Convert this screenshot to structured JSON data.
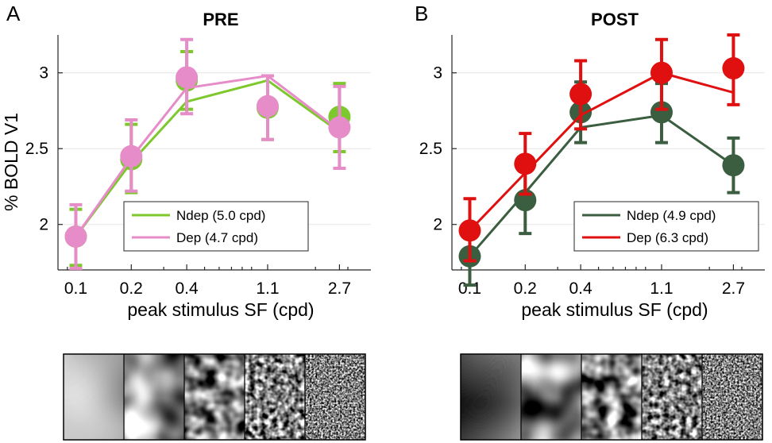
{
  "chart_data": [
    {
      "type": "line",
      "panel_letter": "A",
      "title": "PRE",
      "xlabel": "peak stimulus SF (cpd)",
      "ylabel": "% BOLD V1",
      "x_scale": "log",
      "xlim": [
        0.08,
        4.0
      ],
      "ylim": [
        1.7,
        3.25
      ],
      "x_ticks": [
        0.1,
        0.2,
        0.4,
        1.1,
        2.7
      ],
      "x_tick_labels": [
        "0.1",
        "0.2",
        "0.4",
        "1.1",
        "2.7"
      ],
      "y_ticks": [
        2,
        2.5,
        3
      ],
      "y_tick_labels": [
        "2",
        "2.5",
        "3"
      ],
      "grid": true,
      "legend_position": "lower-right",
      "series": [
        {
          "name": "Ndep (5.0 cpd)",
          "color": "#7dc82c",
          "x": [
            0.1,
            0.2,
            0.4,
            1.1,
            2.7
          ],
          "values": [
            1.92,
            2.43,
            2.95,
            2.77,
            2.71
          ],
          "error_low": [
            1.73,
            2.21,
            2.76,
            2.56,
            2.48
          ],
          "error_high": [
            2.1,
            2.66,
            3.14,
            2.98,
            2.93
          ],
          "fit_x": [
            0.1,
            0.2,
            0.4,
            1.1,
            2.7
          ],
          "fit_y": [
            1.92,
            2.41,
            2.81,
            2.95,
            2.61
          ]
        },
        {
          "name": "Dep (4.7 cpd)",
          "color": "#e68cc8",
          "x": [
            0.1,
            0.2,
            0.4,
            1.1,
            2.7
          ],
          "values": [
            1.92,
            2.45,
            2.97,
            2.78,
            2.64
          ],
          "error_low": [
            1.71,
            2.22,
            2.73,
            2.56,
            2.37
          ],
          "error_high": [
            2.13,
            2.69,
            3.22,
            2.98,
            2.91
          ],
          "fit_x": [
            0.1,
            0.2,
            0.4,
            1.1,
            2.7
          ],
          "fit_y": [
            1.92,
            2.44,
            2.9,
            2.98,
            2.62
          ]
        }
      ]
    },
    {
      "type": "line",
      "panel_letter": "B",
      "title": "POST",
      "xlabel": "peak stimulus SF (cpd)",
      "ylabel": "",
      "x_scale": "log",
      "xlim": [
        0.08,
        4.0
      ],
      "ylim": [
        1.7,
        3.25
      ],
      "x_ticks": [
        0.1,
        0.2,
        0.4,
        1.1,
        2.7
      ],
      "x_tick_labels": [
        "0.1",
        "0.2",
        "0.4",
        "1.1",
        "2.7"
      ],
      "y_ticks": [
        2,
        2.5,
        3
      ],
      "y_tick_labels": [
        "2",
        "2.5",
        "3"
      ],
      "grid": true,
      "legend_position": "lower-right",
      "series": [
        {
          "name": "Ndep (4.9 cpd)",
          "color": "#3b5e40",
          "x": [
            0.1,
            0.2,
            0.4,
            1.1,
            2.7
          ],
          "values": [
            1.79,
            2.16,
            2.74,
            2.74,
            2.39
          ],
          "error_low": [
            1.6,
            1.94,
            2.54,
            2.54,
            2.21
          ],
          "error_high": [
            1.97,
            2.38,
            2.94,
            2.93,
            2.57
          ],
          "fit_x": [
            0.1,
            0.2,
            0.4,
            1.1,
            2.7
          ],
          "fit_y": [
            1.79,
            2.21,
            2.64,
            2.72,
            2.39
          ]
        },
        {
          "name": "Dep (6.3 cpd)",
          "color": "#e01010",
          "x": [
            0.1,
            0.2,
            0.4,
            1.1,
            2.7
          ],
          "values": [
            1.96,
            2.4,
            2.86,
            3.0,
            3.03
          ],
          "error_low": [
            1.76,
            2.2,
            2.63,
            2.76,
            2.79
          ],
          "error_high": [
            2.17,
            2.6,
            3.08,
            3.22,
            3.25
          ],
          "fit_x": [
            0.1,
            0.2,
            0.4,
            1.1,
            2.7
          ],
          "fit_y": [
            1.96,
            2.34,
            2.72,
            3.0,
            2.87
          ]
        }
      ]
    }
  ]
}
